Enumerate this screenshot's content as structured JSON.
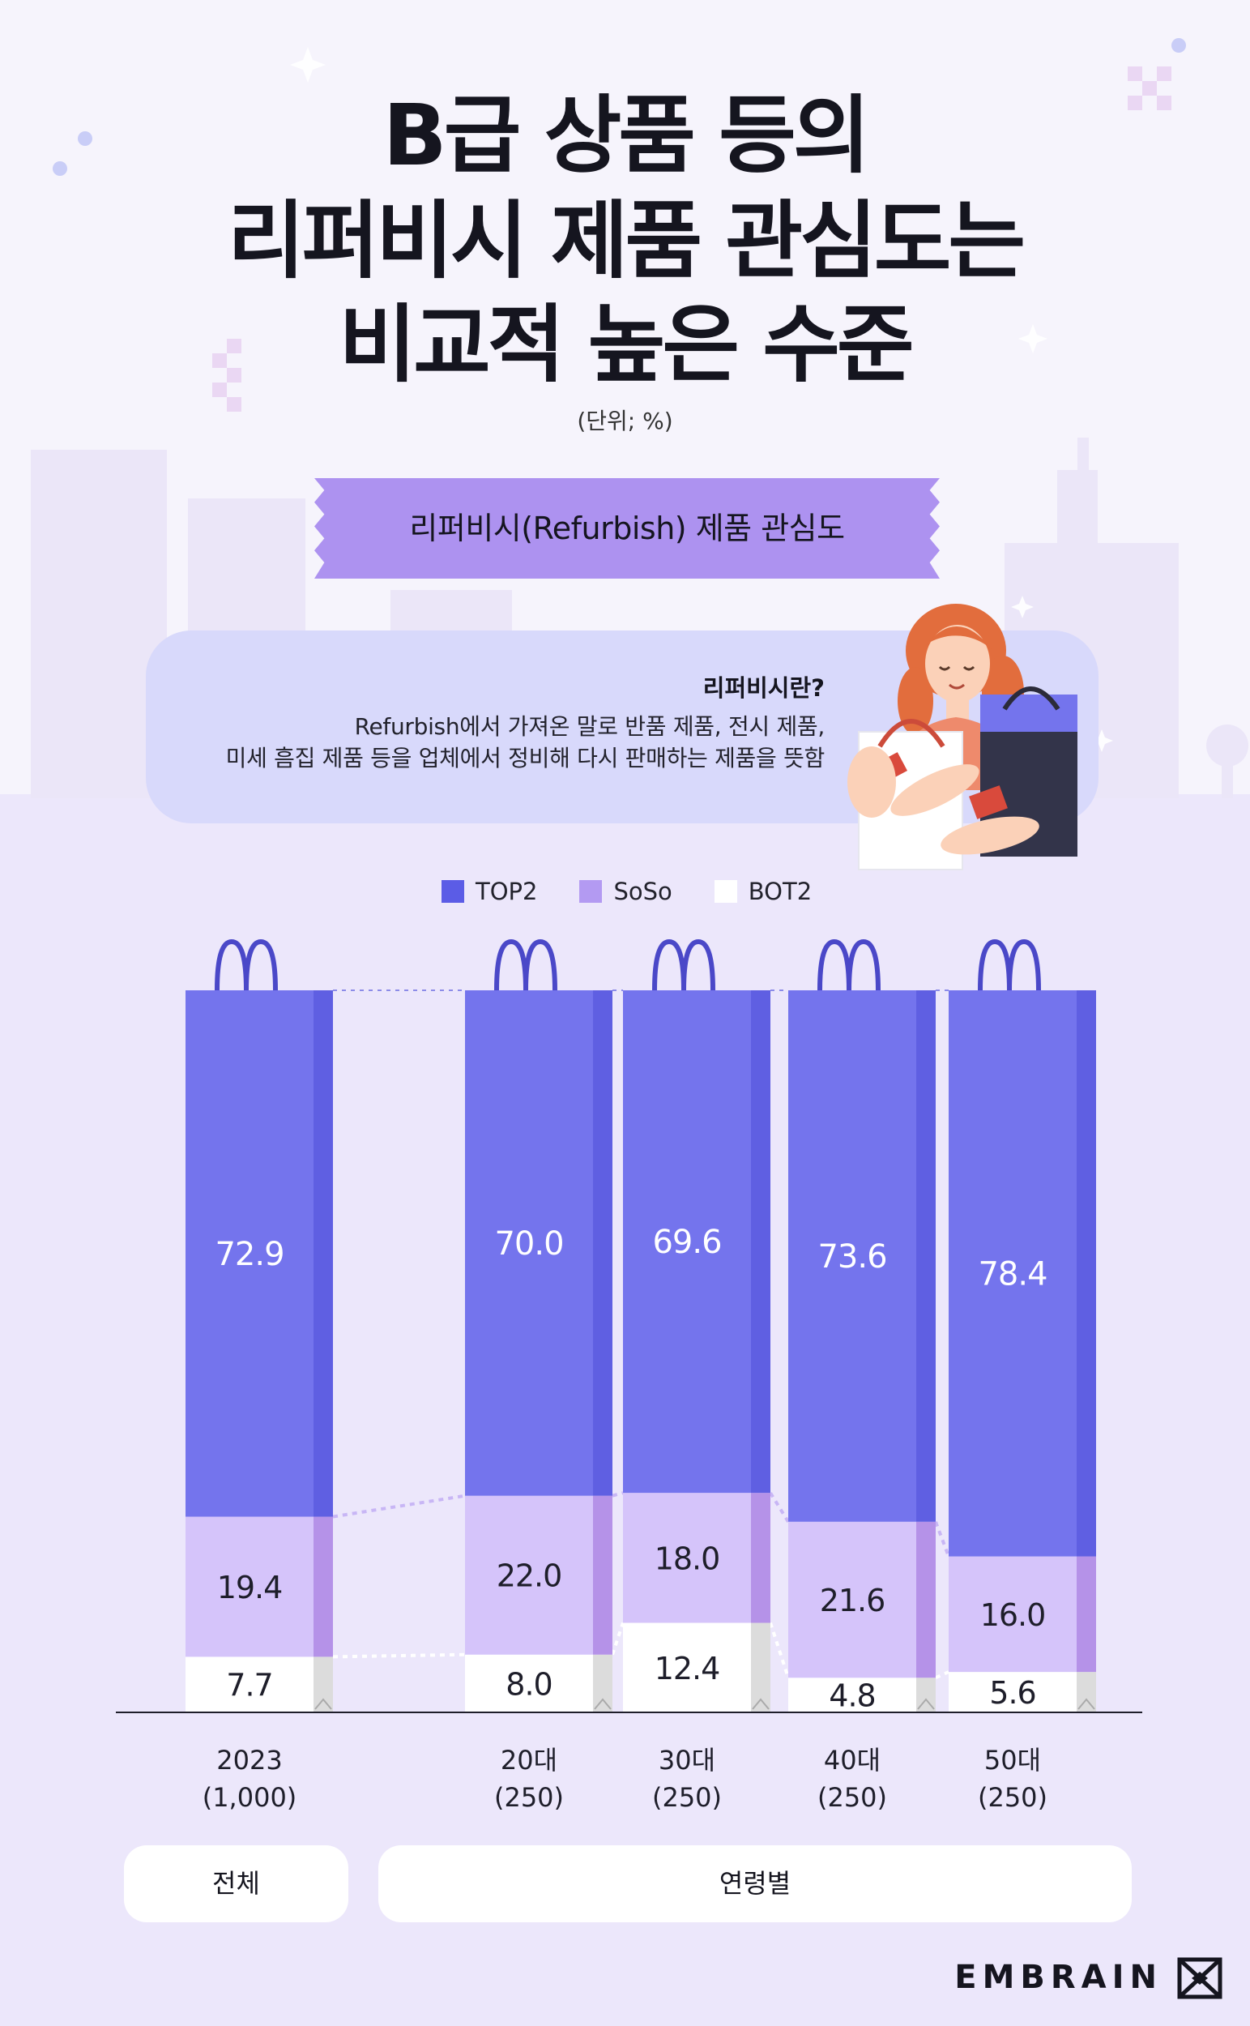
{
  "header": {
    "title_lines": [
      "B급 상품 등의",
      "리퍼비시 제품 관심도는",
      "비교적 높은 수준"
    ],
    "unit": "(단위; %)"
  },
  "ribbon": {
    "label": "리퍼비시(Refurbish) 제품 관심도"
  },
  "info": {
    "title": "리퍼비시란?",
    "lines": [
      "Refurbish에서 가져온 말로 반품 제품, 전시 제품,",
      "미세 흠집 제품 등을 업체에서 정비해 다시 판매하는 제품을 뜻함"
    ]
  },
  "legend": [
    {
      "label": "TOP2",
      "color": "#5b5ce6"
    },
    {
      "label": "SoSo",
      "color": "#b39af2"
    },
    {
      "label": "BOT2",
      "color": "#ffffff"
    }
  ],
  "chart_data": {
    "type": "bar",
    "stacked": true,
    "categories": [
      {
        "line1": "2023",
        "line2": "(1,000)"
      },
      {
        "line1": "20대",
        "line2": "(250)"
      },
      {
        "line1": "30대",
        "line2": "(250)"
      },
      {
        "line1": "40대",
        "line2": "(250)"
      },
      {
        "line1": "50대",
        "line2": "(250)"
      }
    ],
    "series": [
      {
        "name": "BOT2",
        "values": [
          7.7,
          8.0,
          12.4,
          4.8,
          5.6
        ]
      },
      {
        "name": "SoSo",
        "values": [
          19.4,
          22.0,
          18.0,
          21.6,
          16.0
        ]
      },
      {
        "name": "TOP2",
        "values": [
          72.9,
          70.0,
          69.6,
          73.6,
          78.4
        ]
      }
    ],
    "ylim": [
      0,
      100
    ],
    "unit": "%",
    "colors": {
      "TOP2": "#7474ed",
      "SoSo": "#d5c4fa",
      "BOT2": "#ffffff"
    },
    "grid": false
  },
  "groups": {
    "total": "전체",
    "by_age": "연령별"
  },
  "brand": {
    "name": "EMBRAIN"
  }
}
